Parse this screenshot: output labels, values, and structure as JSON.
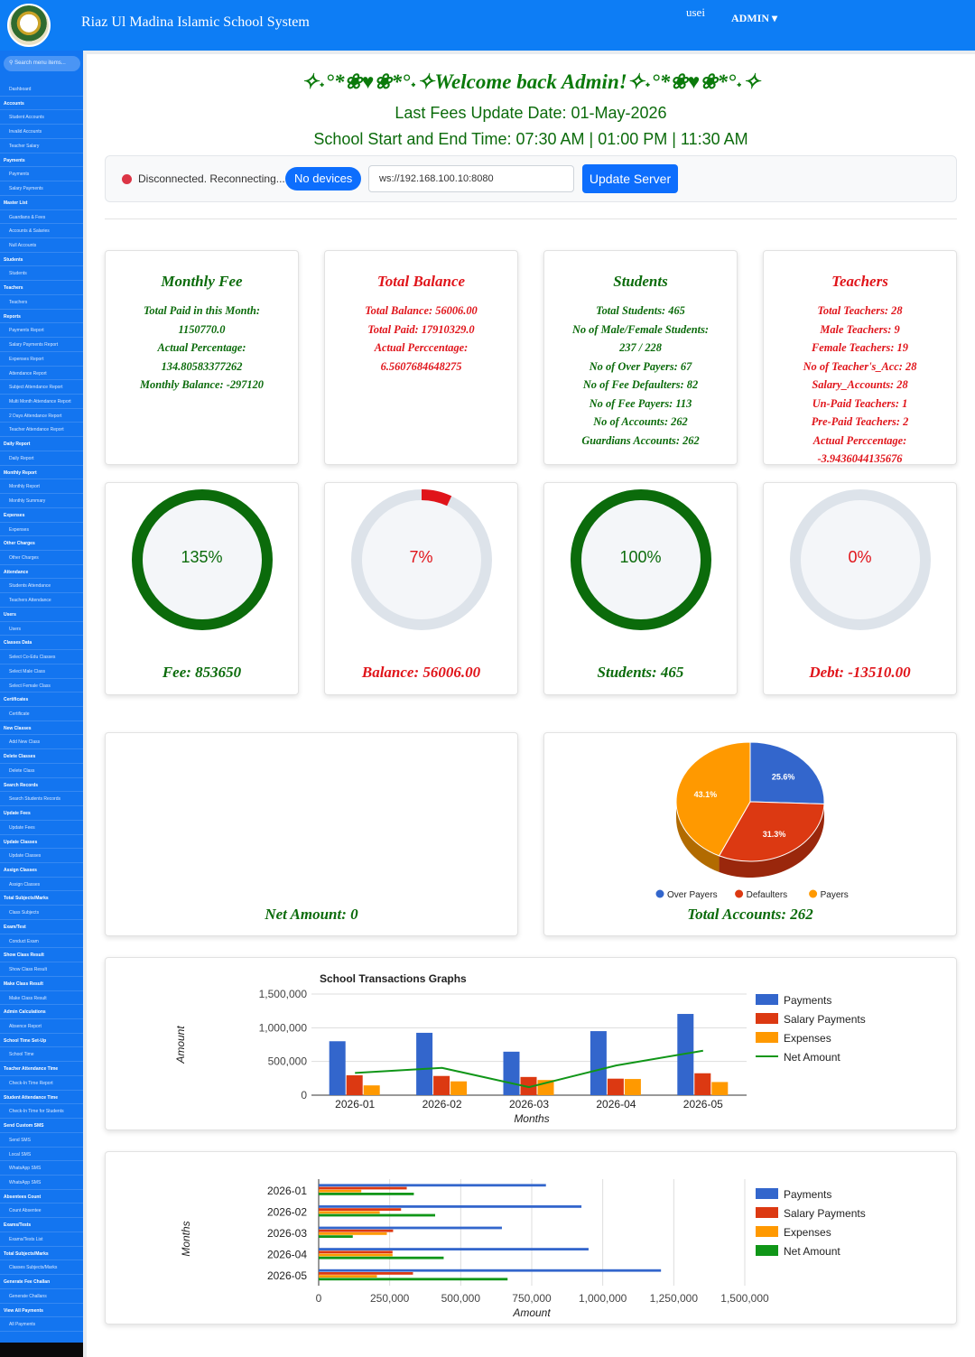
{
  "header": {
    "brand": "Riaz Ul Madina Islamic School System",
    "user_image_alt": "usei",
    "admin_menu": "ADMIN ▾",
    "brand_color": "#0d7df5"
  },
  "sidebar": {
    "search_placeholder": "Search menu items...",
    "items": [
      {
        "t": "Dashboard",
        "h": false
      },
      {
        "t": "Accounts",
        "h": true
      },
      {
        "t": "Student Accounts",
        "h": false
      },
      {
        "t": "Invalid Accounts",
        "h": false
      },
      {
        "t": "Teacher Salary",
        "h": false
      },
      {
        "t": "Payments",
        "h": true
      },
      {
        "t": "Payments",
        "h": false
      },
      {
        "t": "Salary Payments",
        "h": false
      },
      {
        "t": "Master List",
        "h": true
      },
      {
        "t": "Guardians & Fees",
        "h": false
      },
      {
        "t": "Accounts & Salaries",
        "h": false
      },
      {
        "t": "Null Accounts",
        "h": false
      },
      {
        "t": "Students",
        "h": true
      },
      {
        "t": "Students",
        "h": false
      },
      {
        "t": "Teachers",
        "h": true
      },
      {
        "t": "Teachers",
        "h": false
      },
      {
        "t": "Reports",
        "h": true
      },
      {
        "t": "Payments Report",
        "h": false
      },
      {
        "t": "Salary Payments Report",
        "h": false
      },
      {
        "t": "Expenses Report",
        "h": false
      },
      {
        "t": "Attendance Report",
        "h": false
      },
      {
        "t": "Subject Attendance Report",
        "h": false
      },
      {
        "t": "Multi Month Attendance Report",
        "h": false
      },
      {
        "t": "2 Days Attendance Report",
        "h": false
      },
      {
        "t": "Teacher Attendance Report",
        "h": false
      },
      {
        "t": "Daily Report",
        "h": true
      },
      {
        "t": "Daily Report",
        "h": false
      },
      {
        "t": "Monthly Report",
        "h": true
      },
      {
        "t": "Monthly Report",
        "h": false
      },
      {
        "t": "Monthly Summary",
        "h": false
      },
      {
        "t": "Expenses",
        "h": true
      },
      {
        "t": "Expenses",
        "h": false
      },
      {
        "t": "Other Charges",
        "h": true
      },
      {
        "t": "Other Charges",
        "h": false
      },
      {
        "t": "Attendance",
        "h": true
      },
      {
        "t": "Students Attendance",
        "h": false
      },
      {
        "t": "Teachers Attendance",
        "h": false
      },
      {
        "t": "Users",
        "h": true
      },
      {
        "t": "Users",
        "h": false
      },
      {
        "t": "Classes Data",
        "h": true
      },
      {
        "t": "Select Co-Edu Classes",
        "h": false
      },
      {
        "t": "Select Male Class",
        "h": false
      },
      {
        "t": "Select Female Class",
        "h": false
      },
      {
        "t": "Certificates",
        "h": true
      },
      {
        "t": "Certificate",
        "h": false
      },
      {
        "t": "New Classes",
        "h": true
      },
      {
        "t": "Add New Class",
        "h": false
      },
      {
        "t": "Delete Classes",
        "h": true
      },
      {
        "t": "Delete Class",
        "h": false
      },
      {
        "t": "Search Records",
        "h": true
      },
      {
        "t": "Search Students Records",
        "h": false
      },
      {
        "t": "Update Fees",
        "h": true
      },
      {
        "t": "Update Fees",
        "h": false
      },
      {
        "t": "Update Classes",
        "h": true
      },
      {
        "t": "Update Classes",
        "h": false
      },
      {
        "t": "Assign Classes",
        "h": true
      },
      {
        "t": "Assign Classes",
        "h": false
      },
      {
        "t": "Total Subjects/Marks",
        "h": true
      },
      {
        "t": "Class Subjects",
        "h": false
      },
      {
        "t": "Exam/Test",
        "h": true
      },
      {
        "t": "Conduct Exam",
        "h": false
      },
      {
        "t": "Show Class Result",
        "h": true
      },
      {
        "t": "Show Class Result",
        "h": false
      },
      {
        "t": "Make Class Result",
        "h": true
      },
      {
        "t": "Make Class Result",
        "h": false
      },
      {
        "t": "Admin Calculations",
        "h": true
      },
      {
        "t": "Absence Report",
        "h": false
      },
      {
        "t": "School Time Set-Up",
        "h": true
      },
      {
        "t": "School Time",
        "h": false
      },
      {
        "t": "Teacher Attendance Time",
        "h": true
      },
      {
        "t": "Check-In Time Report",
        "h": false
      },
      {
        "t": "Student Attendance Time",
        "h": true
      },
      {
        "t": "Check-In Time for Students",
        "h": false
      },
      {
        "t": "Send Custom SMS",
        "h": true
      },
      {
        "t": "Send SMS",
        "h": false
      },
      {
        "t": "Local SMS",
        "h": false
      },
      {
        "t": "WhatsApp SMS",
        "h": false
      },
      {
        "t": "WhatsApp SMS",
        "h": false
      },
      {
        "t": "Absentees Count",
        "h": true
      },
      {
        "t": "Count Absentee",
        "h": false
      },
      {
        "t": "Exams/Tests",
        "h": true
      },
      {
        "t": "Exams/Tests List",
        "h": false
      },
      {
        "t": "Total Subjects/Marks",
        "h": true
      },
      {
        "t": "Classes Subjects/Marks",
        "h": false
      },
      {
        "t": "Generate Fee Challan",
        "h": true
      },
      {
        "t": "Generate Challans",
        "h": false
      },
      {
        "t": "View All Payments",
        "h": true
      },
      {
        "t": "All Payments",
        "h": false
      }
    ]
  },
  "welcome": {
    "title": "✧˖°*❀♥❀*°˖✧Welcome back Admin!✧˖°*❀♥❀*°˖✧",
    "fees_update": "Last Fees Update Date: 01-May-2026",
    "school_time": "School Start and End Time: 07:30 AM | 01:00 PM | 11:30 AM"
  },
  "connection": {
    "status_text": "Disconnected. Reconnecting...",
    "devices_badge": "No devices",
    "server_url": "ws://192.168.100.10:8080",
    "update_button": "Update Server"
  },
  "cards": [
    {
      "title": "Monthly Fee",
      "color": "green",
      "lines": [
        "Total Paid in this Month:",
        "1150770.0",
        "Actual Percentage:",
        "134.80583377262",
        "Monthly Balance: -297120"
      ]
    },
    {
      "title": "Total Balance",
      "color": "red",
      "lines": [
        "Total Balance: 56006.00",
        "Total Paid: 17910329.0",
        "Actual Perccentage:",
        "6.5607684648275"
      ]
    },
    {
      "title": "Students",
      "color": "green",
      "lines": [
        "Total Students: 465",
        "No of Male/Female Students:",
        "237 / 228",
        "No of Over Payers: 67",
        "No of Fee Defaulters: 82",
        "No of Fee Payers: 113",
        "No of Accounts: 262",
        "Guardians Accounts: 262"
      ]
    },
    {
      "title": "Teachers",
      "color": "red",
      "lines": [
        "Total Teachers: 28",
        "Male Teachers: 9",
        "Female Teachers: 19",
        "No of Teacher's_Acc: 28",
        "Salary_Accounts: 28",
        "Un-Paid Teachers: 1",
        "Pre-Paid Teachers: 2",
        "Actual Perccentage:",
        "-3.9436044135676"
      ]
    }
  ],
  "gauges": [
    {
      "label": "135%",
      "fraction": 1.0,
      "color": "#0b6b0b",
      "footer": "Fee: 853650",
      "footer_color": "green"
    },
    {
      "label": "7%",
      "fraction": 0.07,
      "color": "#e0141a",
      "footer": "Balance: 56006.00",
      "footer_color": "red"
    },
    {
      "label": "100%",
      "fraction": 1.0,
      "color": "#0b6b0b",
      "footer": "Students: 465",
      "footer_color": "green"
    },
    {
      "label": "0%",
      "fraction": 0.0,
      "color": "#e0141a",
      "footer": "Debt: -13510.00",
      "footer_color": "red"
    }
  ],
  "net_amount_label": "Net Amount: 0",
  "total_accounts_label": "Total Accounts: 262",
  "chart_data": [
    {
      "type": "pie",
      "title": "",
      "slices": [
        {
          "name": "Over Payers",
          "value": 25.6,
          "label": "25.6%",
          "color": "#3366cc"
        },
        {
          "name": "Defaulters",
          "value": 31.3,
          "label": "31.3%",
          "color": "#dc3912"
        },
        {
          "name": "Payers",
          "value": 43.1,
          "label": "43.1%",
          "color": "#ff9900"
        }
      ],
      "legend": "bottom"
    },
    {
      "type": "bar",
      "title": "School Transactions Graphs",
      "xlabel": "Months",
      "ylabel": "Amount",
      "categories": [
        "2026-01",
        "2026-02",
        "2026-03",
        "2026-04",
        "2026-05"
      ],
      "ylim": [
        0,
        1500000
      ],
      "yticks": [
        "0",
        "500,000",
        "1,000,000",
        "1,500,000"
      ],
      "series": [
        {
          "name": "Payments",
          "values": [
            800000,
            925000,
            645000,
            950000,
            1205000
          ],
          "color": "#3366cc"
        },
        {
          "name": "Salary Payments",
          "values": [
            295000,
            285000,
            270000,
            245000,
            325000
          ],
          "color": "#dc3912"
        },
        {
          "name": "Expenses",
          "values": [
            145000,
            205000,
            225000,
            240000,
            195000
          ],
          "color": "#ff9900"
        },
        {
          "name": "Net Amount",
          "values": [
            330000,
            405000,
            120000,
            440000,
            660000
          ],
          "color": "#109618",
          "kind": "line"
        }
      ],
      "legend": "right"
    },
    {
      "type": "bar",
      "orientation": "horizontal",
      "title": "",
      "xlabel": "Amount",
      "ylabel": "Months",
      "categories": [
        "2026-01",
        "2026-02",
        "2026-03",
        "2026-04",
        "2026-05"
      ],
      "xlim": [
        0,
        1500000
      ],
      "xticks": [
        "0",
        "250,000",
        "500,000",
        "750,000",
        "1,000,000",
        "1,250,000",
        "1,500,000"
      ],
      "series": [
        {
          "name": "Payments",
          "values": [
            800000,
            925000,
            645000,
            950000,
            1205000
          ],
          "color": "#3366cc"
        },
        {
          "name": "Salary Payments",
          "values": [
            310000,
            290000,
            262000,
            260000,
            332000
          ],
          "color": "#dc3912"
        },
        {
          "name": "Expenses",
          "values": [
            150000,
            215000,
            240000,
            260000,
            205000
          ],
          "color": "#ff9900"
        },
        {
          "name": "Net Amount",
          "values": [
            335000,
            410000,
            120000,
            440000,
            665000
          ],
          "color": "#109618"
        }
      ],
      "legend": "right"
    }
  ]
}
